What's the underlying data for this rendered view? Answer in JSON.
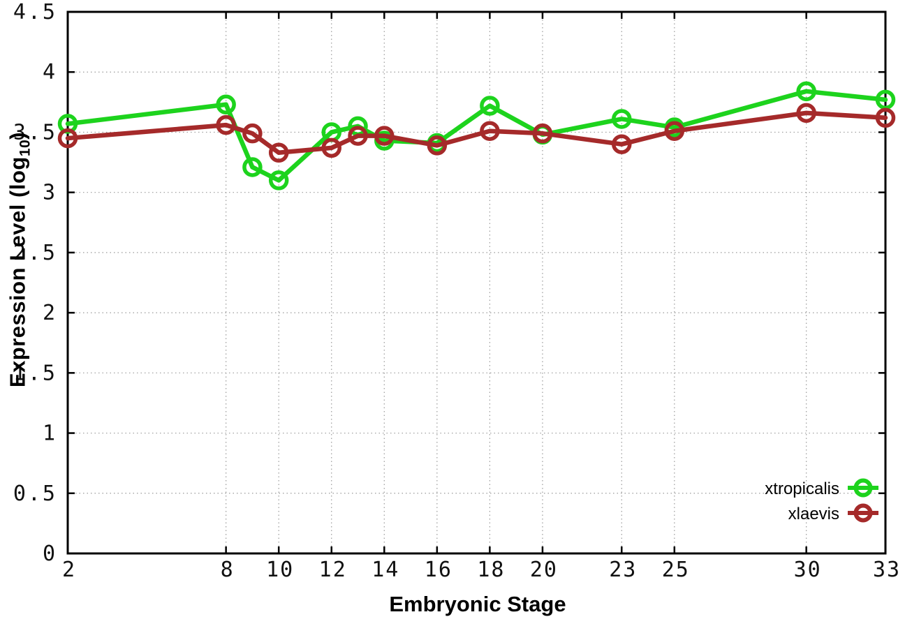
{
  "chart_data": {
    "type": "line",
    "title": "",
    "xlabel": "Embryonic Stage",
    "ylabel": "Expression Level (log10)",
    "ylabel_parts": {
      "main": "Expression Level (log",
      "sub": "10",
      "close": ")"
    },
    "x": [
      2,
      8,
      9,
      10,
      12,
      13,
      14,
      16,
      18,
      20,
      23,
      25,
      30,
      33
    ],
    "x_tick_values": [
      2,
      8,
      10,
      12,
      14,
      16,
      18,
      20,
      23,
      25,
      30,
      33
    ],
    "x_tick_labels": [
      "2",
      "8",
      "10",
      "12",
      "14",
      "16",
      "18",
      "20",
      "23",
      "25",
      "30",
      "33"
    ],
    "y_tick_values": [
      0,
      0.5,
      1,
      1.5,
      2,
      2.5,
      3,
      3.5,
      4,
      4.5
    ],
    "y_tick_labels": [
      "0",
      "0.5",
      "1",
      "1.5",
      "2",
      "2.5",
      "3",
      "3.5",
      "4",
      "4.5"
    ],
    "xlim": [
      2,
      33
    ],
    "ylim": [
      0,
      4.5
    ],
    "grid": true,
    "legend_position": "inside-bottom-right",
    "series": [
      {
        "name": "xtropicalis",
        "color": "#1dd31d",
        "values": [
          3.57,
          3.73,
          3.21,
          3.1,
          3.5,
          3.55,
          3.43,
          3.41,
          3.72,
          3.48,
          3.61,
          3.54,
          3.84,
          3.77
        ]
      },
      {
        "name": "xlaevis",
        "color": "#a52a2a",
        "values": [
          3.45,
          3.56,
          3.49,
          3.33,
          3.37,
          3.47,
          3.47,
          3.39,
          3.51,
          3.49,
          3.4,
          3.51,
          3.66,
          3.62
        ]
      }
    ]
  },
  "styles": {
    "grid_color": "#999999",
    "axis_color": "#000000",
    "tick_label_color": "#111111"
  }
}
